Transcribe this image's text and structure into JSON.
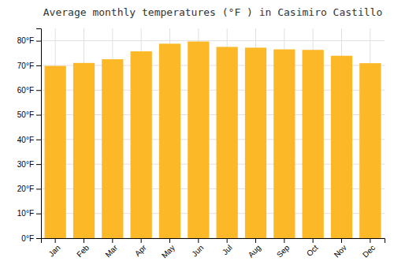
{
  "chart_data": {
    "type": "bar",
    "title": "Average monthly temperatures (°F ) in Casimiro Castillo",
    "categories": [
      "Jan",
      "Feb",
      "Mar",
      "Apr",
      "May",
      "Jun",
      "Jul",
      "Aug",
      "Sep",
      "Oct",
      "Nov",
      "Dec"
    ],
    "values": [
      69.8,
      71.0,
      72.5,
      75.7,
      78.8,
      79.7,
      77.5,
      77.2,
      76.5,
      76.3,
      73.9,
      70.9
    ],
    "color": "#FDB827",
    "ylim": [
      0,
      85
    ],
    "yticks": [
      {
        "value": 0,
        "label": "0°F"
      },
      {
        "value": 10,
        "label": "10°F"
      },
      {
        "value": 20,
        "label": "20°F"
      },
      {
        "value": 30,
        "label": "30°F"
      },
      {
        "value": 40,
        "label": "40°F"
      },
      {
        "value": 50,
        "label": "50°F"
      },
      {
        "value": 60,
        "label": "60°F"
      },
      {
        "value": 70,
        "label": "70°F"
      },
      {
        "value": 80,
        "label": "80°F"
      }
    ],
    "grid": true
  }
}
